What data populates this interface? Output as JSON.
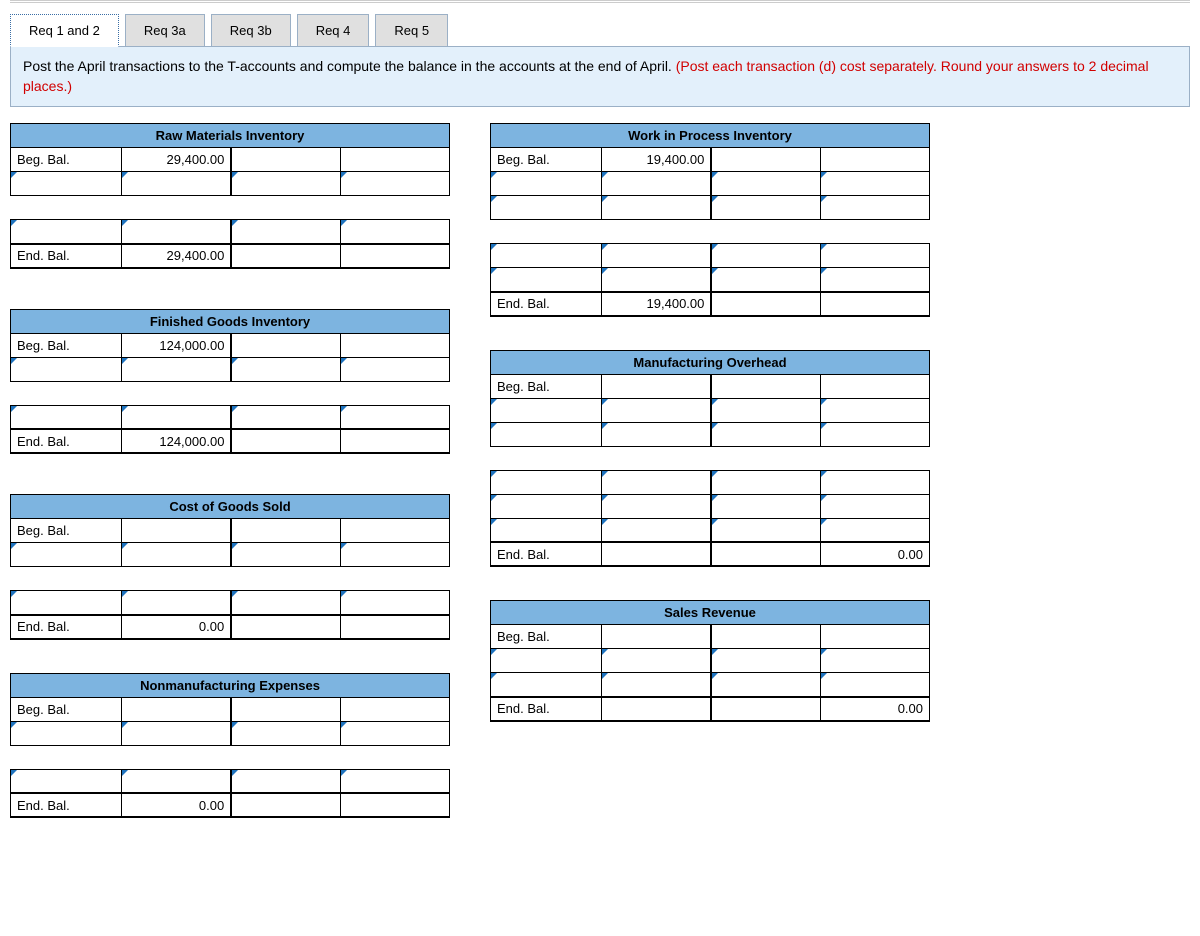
{
  "tabs": [
    "Req 1 and 2",
    "Req 3a",
    "Req 3b",
    "Req 4",
    "Req 5"
  ],
  "active_tab": 0,
  "instruction_black": "Post the April transactions to the T-accounts and compute the balance in the accounts at the end of April. ",
  "instruction_red": "(Post each transaction (d) cost separately. Round your answers to 2 decimal places.)",
  "labels": {
    "beg": "Beg. Bal.",
    "end": "End. Bal."
  },
  "accounts": {
    "raw_materials": {
      "title": "Raw Materials Inventory",
      "beg_debit": "29,400.00",
      "end_debit": "29,400.00",
      "extra_input_rows": 2,
      "end_col": "debit"
    },
    "wip": {
      "title": "Work in Process Inventory",
      "beg_debit": "19,400.00",
      "end_debit": "19,400.00",
      "extra_input_rows": 4,
      "end_col": "debit"
    },
    "fg": {
      "title": "Finished Goods Inventory",
      "beg_debit": "124,000.00",
      "end_debit": "124,000.00",
      "extra_input_rows": 2,
      "end_col": "debit"
    },
    "moh": {
      "title": "Manufacturing Overhead",
      "beg_debit": "",
      "end_credit": "0.00",
      "extra_input_rows": 5,
      "end_col": "credit"
    },
    "cogs": {
      "title": "Cost of Goods Sold",
      "beg_debit": "",
      "end_debit": "0.00",
      "extra_input_rows": 2,
      "end_col": "debit"
    },
    "sales": {
      "title": "Sales Revenue",
      "beg_debit": "",
      "end_credit": "0.00",
      "extra_input_rows": 2,
      "end_col": "credit"
    },
    "nonmfg": {
      "title": "Nonmanufacturing Expenses",
      "beg_debit": "",
      "end_debit": "0.00",
      "extra_input_rows": 2,
      "end_col": "debit"
    }
  }
}
